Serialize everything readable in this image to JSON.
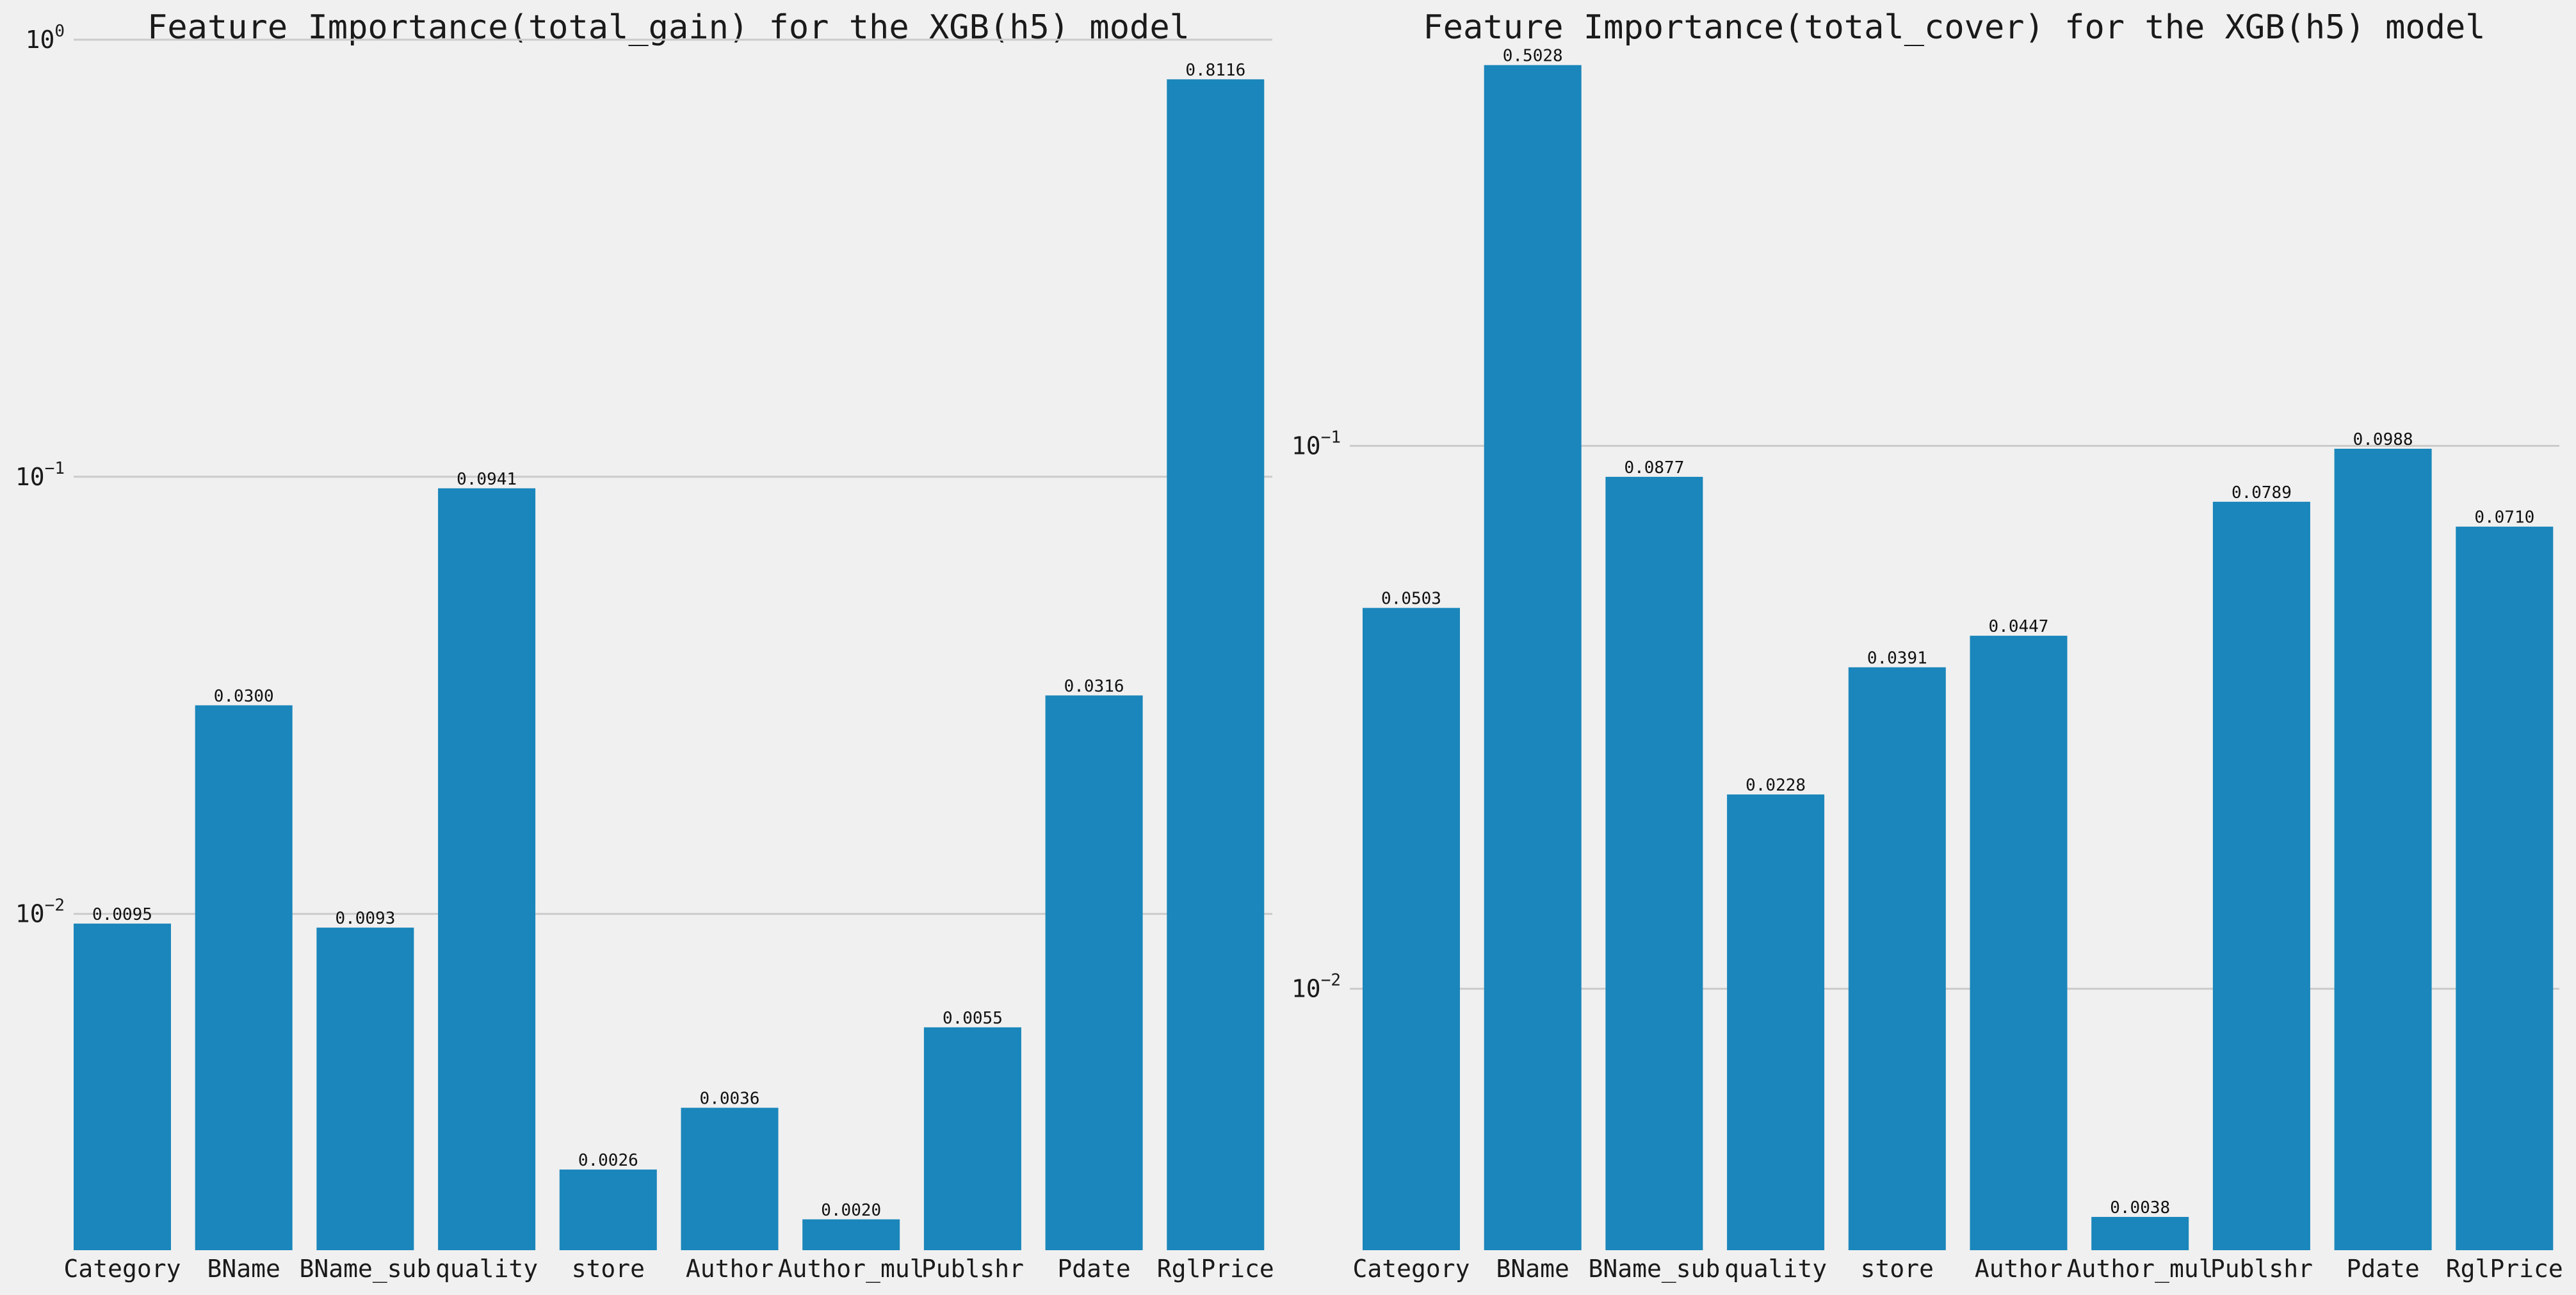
{
  "background": "#f0f0f0",
  "bar_color": "#1a86bb",
  "chart_data": [
    {
      "type": "bar",
      "title": "Feature Importance(total_gain) for the XGB(h5) model",
      "xlabel": "",
      "ylabel": "",
      "y_scale": "log",
      "ylim": [
        0.0017,
        1.0
      ],
      "y_ticks": [
        {
          "value": 0.01,
          "base": "10",
          "exp": "−2"
        },
        {
          "value": 0.1,
          "base": "10",
          "exp": "−1"
        },
        {
          "value": 1.0,
          "base": "10",
          "exp": "0"
        }
      ],
      "grid": true,
      "categories": [
        "Category",
        "BName",
        "BName_sub",
        "quality",
        "store",
        "Author",
        "Author_mul",
        "Publshr",
        "Pdate",
        "RglPrice"
      ],
      "values": [
        0.0095,
        0.03,
        0.0093,
        0.0941,
        0.0026,
        0.0036,
        0.002,
        0.0055,
        0.0316,
        0.8116
      ],
      "data_labels": [
        "0.0095",
        "0.0300",
        "0.0093",
        "0.0941",
        "0.0026",
        "0.0036",
        "0.0020",
        "0.0055",
        "0.0316",
        "0.8116"
      ]
    },
    {
      "type": "bar",
      "title": "Feature Importance(total_cover) for the XGB(h5) model",
      "xlabel": "",
      "ylabel": "",
      "y_scale": "log",
      "ylim": [
        0.0033,
        0.56
      ],
      "y_ticks": [
        {
          "value": 0.01,
          "base": "10",
          "exp": "−2"
        },
        {
          "value": 0.1,
          "base": "10",
          "exp": "−1"
        }
      ],
      "grid": true,
      "categories": [
        "Category",
        "BName",
        "BName_sub",
        "quality",
        "store",
        "Author",
        "Author_mul",
        "Publshr",
        "Pdate",
        "RglPrice"
      ],
      "values": [
        0.0503,
        0.5028,
        0.0877,
        0.0228,
        0.0391,
        0.0447,
        0.0038,
        0.0789,
        0.0988,
        0.071
      ],
      "data_labels": [
        "0.0503",
        "0.5028",
        "0.0877",
        "0.0228",
        "0.0391",
        "0.0447",
        "0.0038",
        "0.0789",
        "0.0988",
        "0.0710"
      ]
    }
  ]
}
